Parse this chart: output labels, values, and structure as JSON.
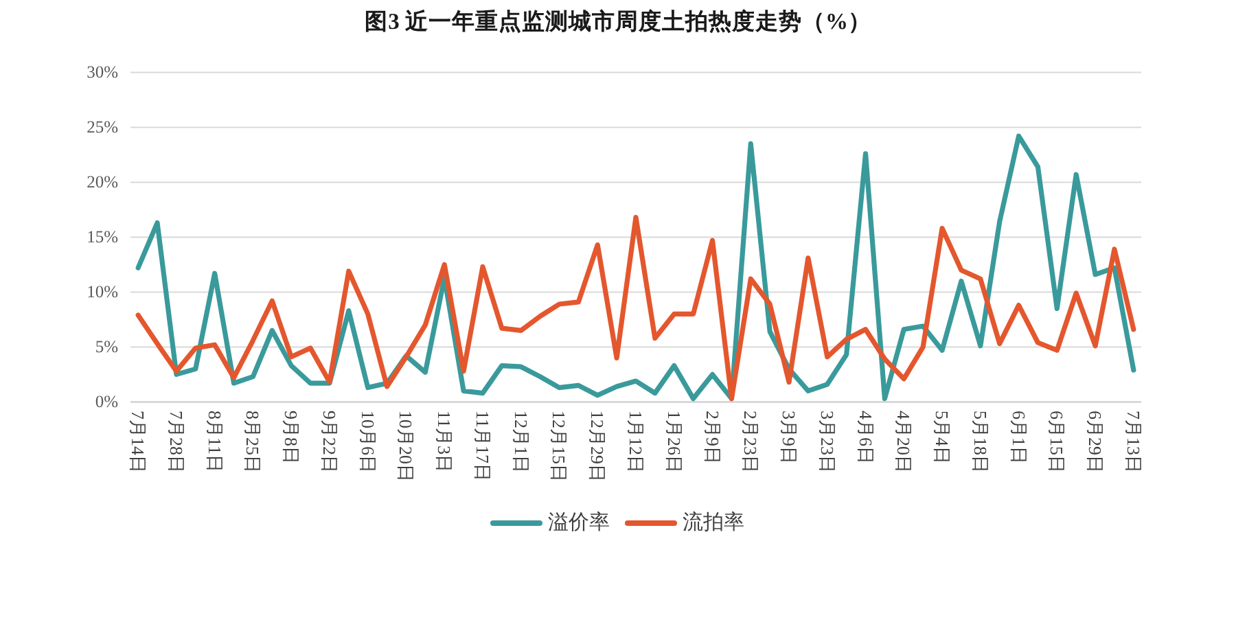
{
  "chart_data": {
    "type": "line",
    "title": "图3 近一年重点监测城市周度土拍热度走势（%）",
    "categories": [
      "7月14日",
      null,
      "7月28日",
      null,
      "8月11日",
      null,
      "8月25日",
      null,
      "9月8日",
      null,
      "9月22日",
      null,
      "10月6日",
      null,
      "10月20日",
      null,
      "11月3日",
      null,
      "11月17日",
      null,
      "12月1日",
      null,
      "12月15日",
      null,
      "12月29日",
      null,
      "1月12日",
      null,
      "1月26日",
      null,
      "2月9日",
      null,
      "2月23日",
      null,
      "3月9日",
      null,
      "3月23日",
      null,
      "4月6日",
      null,
      "4月20日",
      null,
      "5月4日",
      null,
      "5月18日",
      null,
      "6月1日",
      null,
      "6月15日",
      null,
      "6月29日",
      null,
      "7月13日"
    ],
    "series": [
      {
        "name": "溢价率",
        "color": "#3a9a9b",
        "values": [
          12.2,
          16.3,
          2.5,
          3.0,
          11.7,
          1.7,
          2.3,
          6.5,
          3.3,
          1.7,
          1.7,
          8.3,
          1.3,
          1.7,
          4.2,
          2.7,
          11.3,
          1.0,
          0.8,
          3.3,
          3.2,
          2.3,
          1.3,
          1.5,
          0.6,
          1.4,
          1.9,
          0.8,
          3.3,
          0.3,
          2.5,
          0.3,
          23.5,
          6.4,
          3.0,
          1.0,
          1.6,
          4.3,
          22.6,
          0.3,
          6.6,
          6.9,
          4.7,
          11.0,
          5.1,
          16.4,
          24.2,
          21.4,
          8.5,
          20.7,
          11.6,
          12.2,
          2.9
        ]
      },
      {
        "name": "流拍率",
        "color": "#e4572e",
        "values": [
          7.9,
          5.3,
          2.8,
          4.9,
          5.2,
          2.2,
          5.6,
          9.2,
          4.1,
          4.9,
          1.8,
          11.9,
          8.0,
          1.4,
          4.1,
          7.0,
          12.5,
          2.8,
          12.3,
          6.7,
          6.5,
          7.8,
          8.9,
          9.1,
          14.3,
          4.0,
          16.8,
          5.8,
          8.0,
          8.0,
          14.7,
          0.3,
          11.2,
          8.9,
          1.8,
          13.1,
          4.1,
          5.7,
          6.6,
          3.9,
          2.1,
          5.0,
          15.8,
          12.0,
          11.2,
          5.3,
          8.8,
          5.4,
          4.7,
          9.9,
          5.1,
          13.9,
          6.6
        ]
      }
    ],
    "ylim": [
      0,
      30
    ],
    "yticks": [
      {
        "value": 0,
        "label": "0%"
      },
      {
        "value": 5,
        "label": "5%"
      },
      {
        "value": 10,
        "label": "10%"
      },
      {
        "value": 15,
        "label": "15%"
      },
      {
        "value": 20,
        "label": "20%"
      },
      {
        "value": 25,
        "label": "25%"
      },
      {
        "value": 30,
        "label": "30%"
      }
    ],
    "grid": "y",
    "legend": "bottom",
    "line_style": "solid"
  }
}
